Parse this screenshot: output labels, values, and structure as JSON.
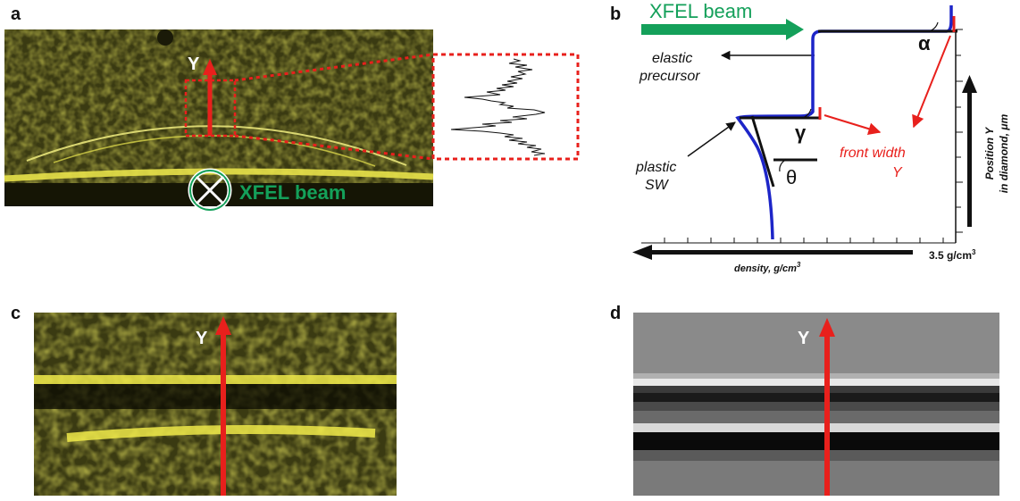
{
  "colors": {
    "red": "#e8201c",
    "green": "#14a05a",
    "blue": "#1d25c8",
    "yellow": "#d8d22a",
    "black": "#111111"
  },
  "panel_a": {
    "label": "a",
    "axis_label": "Y",
    "beam_label": "XFEL beam",
    "beam_icon": "cross-circle-icon"
  },
  "panel_b": {
    "label": "b",
    "beam_label": "XFEL beam",
    "elastic_label_1": "elastic",
    "elastic_label_2": "precursor",
    "plastic_label_1": "plastic",
    "plastic_label_2": "SW",
    "front_width_label_1": "front width",
    "front_width_label_2": "Y",
    "alpha": "α",
    "gamma": "γ",
    "theta": "θ",
    "y_axis_label_1": "Position Y",
    "y_axis_label_2": "in diamond, μm",
    "x_axis_label": "density, g/cm",
    "x_axis_sup": "3",
    "x_tick_label": "3.5 g/cm",
    "x_tick_sup": "3"
  },
  "panel_c": {
    "label": "c",
    "axis_label": "Y"
  },
  "panel_d": {
    "label": "d",
    "axis_label": "Y"
  }
}
